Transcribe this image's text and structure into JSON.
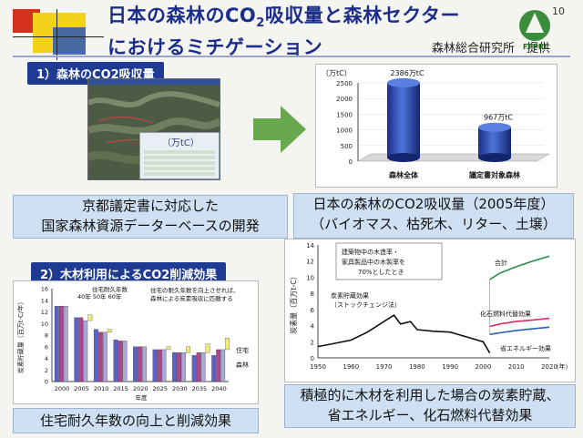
{
  "header": {
    "title_line1_prefix": "日本の森林のCO",
    "title_line1_sub": "2",
    "title_line1_suffix": "吸収量と森林セクター",
    "title_line2": "におけるミチゲーション",
    "slide_number": "10",
    "provider": "森林総合研究所　提供",
    "logo_text": "FFPRI"
  },
  "sections": {
    "s1_label": "1）森林のCO2吸収量",
    "s2_label": "2）木材利用によるCO2削減効果"
  },
  "captions": {
    "left_top_line1": "京都議定書に対応した",
    "left_top_line2": "国家森林資源データーベースの開発",
    "right_top_line1": "日本の森林のCO2吸収量（2005年度）",
    "right_top_line2": "（バイオマス、枯死木、リター、土壌）",
    "left_bottom": "住宅耐久年数の向上と削減効果",
    "right_bottom_line1": "積極的に木材を利用した場合の炭素貯蔵、",
    "right_bottom_line2": "省エネルギー、化石燃料代替効果"
  },
  "screenshot": {
    "unit_label": "（万tC）"
  },
  "colors": {
    "title": "#1c2e8c",
    "section_bg": "#1f3a93",
    "caption_bg": "#cfe0f2",
    "arrow": "#6aa84f"
  },
  "chart_data": [
    {
      "type": "bar",
      "unit": "（万tC）",
      "categories": [
        "森林全体",
        "議定書対象森林"
      ],
      "values": [
        2386,
        967
      ],
      "data_labels": [
        "2386万tC",
        "967万tC"
      ],
      "ylim": [
        0,
        2500
      ],
      "yticks": [
        "0",
        "500",
        "1000",
        "1500",
        "2000",
        "2500"
      ]
    },
    {
      "type": "bar",
      "ylabel": "炭素貯蔵量（百万t-C/年）",
      "xlabel": "年度",
      "categories": [
        "2000",
        "2005",
        "2010",
        "2015",
        "2020",
        "2025",
        "2030",
        "2035",
        "2040"
      ],
      "yticks": [
        "0",
        "2",
        "4",
        "6",
        "8",
        "10",
        "12",
        "14",
        "16"
      ],
      "ylim": [
        0,
        16
      ],
      "series": [
        {
          "name": "40年",
          "values": [
            13,
            11,
            9,
            7.2,
            6,
            5.5,
            5,
            4.5,
            4.5
          ]
        },
        {
          "name": "50年",
          "values": [
            13,
            11,
            8.5,
            7,
            6,
            5.5,
            5,
            5,
            5.5
          ]
        },
        {
          "name": "60年",
          "values": [
            13,
            10.5,
            8.5,
            7,
            6,
            5.5,
            5,
            5,
            5.5
          ]
        },
        {
          "name": "住宅",
          "values": [
            0,
            1,
            0.5,
            0,
            0,
            0.5,
            1,
            1.5,
            2
          ]
        },
        {
          "name": "森林",
          "values": [
            0,
            0,
            0,
            0,
            0,
            0,
            0,
            0,
            0
          ]
        }
      ],
      "annotations": [
        "住宅耐久年数",
        "40年 50年 60年",
        "住宅の耐久年数を向上させれば、",
        "森林による炭素吸収に匹敵する"
      ],
      "legend": [
        "住宅",
        "森林"
      ]
    },
    {
      "type": "line",
      "ylabel": "炭素量（百万t-C）",
      "xlabel": "（年）",
      "x_ticks": [
        "1950",
        "1960",
        "1970",
        "1980",
        "1990",
        "2000",
        "2010",
        "2020"
      ],
      "yticks": [
        "0",
        "2",
        "4",
        "6",
        "8",
        "10",
        "12",
        "14"
      ],
      "ylim": [
        0,
        14
      ],
      "xlim": [
        1950,
        2020
      ],
      "series": [
        {
          "name": "炭素貯蔵効果（ストックチェンジ法）",
          "x": [
            1950,
            1955,
            1960,
            1965,
            1970,
            1973,
            1975,
            1978,
            1980,
            1985,
            1990,
            1995,
            2000,
            2002
          ],
          "y": [
            1.4,
            1.8,
            2.2,
            3.2,
            4.5,
            5.3,
            4.2,
            4.5,
            3.5,
            3.3,
            3.2,
            2.6,
            2.0,
            0.6
          ]
        },
        {
          "name": "合計",
          "x": [
            2002,
            2005,
            2010,
            2015,
            2020
          ],
          "y": [
            9.7,
            10.5,
            11.3,
            12.0,
            12.6
          ]
        },
        {
          "name": "化石燃料代替効果",
          "x": [
            2002,
            2005,
            2010,
            2015,
            2020
          ],
          "y": [
            3.9,
            4.2,
            4.5,
            4.7,
            4.9
          ]
        },
        {
          "name": "省エネルギー効果",
          "x": [
            2002,
            2005,
            2010,
            2015,
            2020
          ],
          "y": [
            2.9,
            3.1,
            3.4,
            3.6,
            3.8
          ]
        }
      ],
      "annotations": [
        "建築物中の木造率・",
        "家具製品中の木製率を",
        "70%としたとき"
      ]
    }
  ]
}
